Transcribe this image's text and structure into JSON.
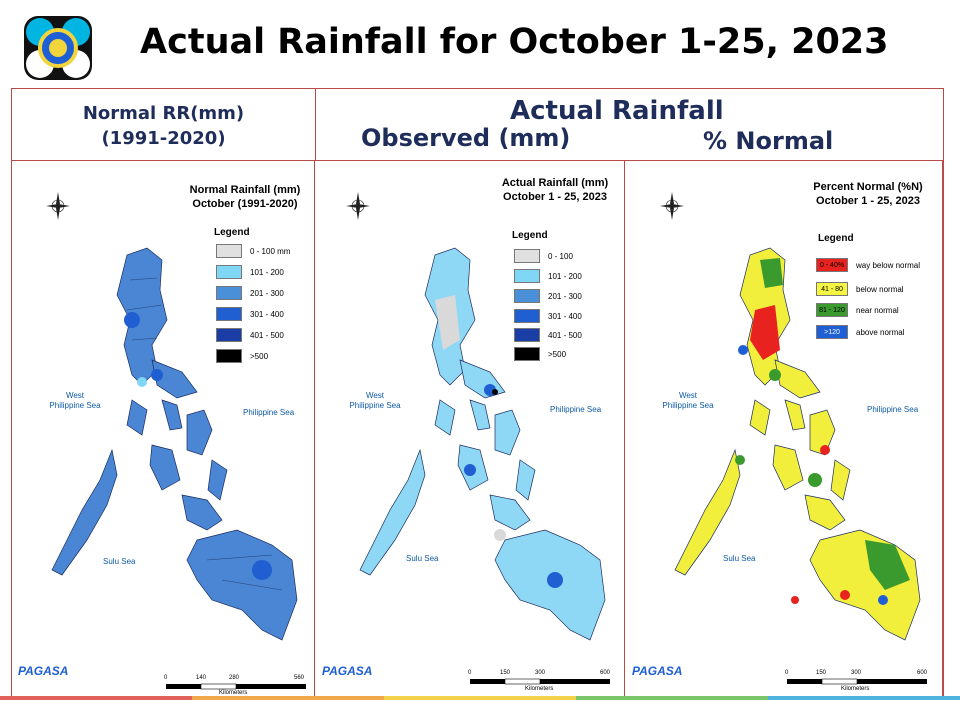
{
  "slide_title": "Actual Rainfall for October 1-25, 2023",
  "headers": {
    "normal_line1": "Normal RR(mm)",
    "normal_line2": "(1991-2020)",
    "actual": "Actual Rainfall",
    "observed": "Observed (mm)",
    "percent": "% Normal"
  },
  "panels": [
    {
      "title_line1": "Normal Rainfall (mm)",
      "title_line2": "October (1991-2020)",
      "legend_title": "Legend",
      "legend": [
        {
          "label": "0 - 100 mm",
          "color": "#e0e0e0"
        },
        {
          "label": "101 - 200",
          "color": "#7fd6f5"
        },
        {
          "label": "201 - 300",
          "color": "#4a90d9"
        },
        {
          "label": "301 - 400",
          "color": "#1f5fd1"
        },
        {
          "label": "401 - 500",
          "color": "#1b3ea6"
        },
        {
          "label": ">500",
          "color": "#000000"
        }
      ],
      "scale_ticks": [
        "0",
        "140",
        "280",
        "560"
      ],
      "map_fill": "#4a86d4"
    },
    {
      "title_line1": "Actual Rainfall (mm)",
      "title_line2": "October 1 - 25, 2023",
      "legend_title": "Legend",
      "legend": [
        {
          "label": "0 - 100",
          "color": "#e0e0e0"
        },
        {
          "label": "101 - 200",
          "color": "#7fd6f5"
        },
        {
          "label": "201 - 300",
          "color": "#4a90d9"
        },
        {
          "label": "301 - 400",
          "color": "#1f5fd1"
        },
        {
          "label": "401 - 500",
          "color": "#1b3ea6"
        },
        {
          "label": ">500",
          "color": "#000000"
        }
      ],
      "scale_ticks": [
        "0",
        "150",
        "300",
        "600"
      ],
      "map_fill": "#8fd8f5"
    },
    {
      "title_line1": "Percent Normal (%N)",
      "title_line2": "October 1 - 25, 2023",
      "legend_title": "Legend",
      "legend": [
        {
          "swatch": "0 - 40%",
          "label": "way below normal",
          "color": "#e8231f"
        },
        {
          "swatch": "41 - 80",
          "label": "below normal",
          "color": "#f5f542"
        },
        {
          "swatch": "81 - 120",
          "label": "near normal",
          "color": "#3a9a2e"
        },
        {
          "swatch": ">120",
          "label": "above normal",
          "color": "#1e5fd6"
        }
      ],
      "scale_ticks": [
        "0",
        "150",
        "300",
        "600"
      ],
      "map_fill": "#f2ee3c"
    }
  ],
  "sea_labels": {
    "west": "West\nPhilippine Sea",
    "east": "Philippine Sea",
    "sulu": "Sulu Sea"
  },
  "scale_unit": "Kilometers",
  "compass": {
    "n": "N",
    "s": "S",
    "e": "E",
    "w": "W"
  },
  "brand": "PAGASA",
  "bottom_bar_colors": [
    "#e0605a",
    "#f0a84a",
    "#f3d34a",
    "#7cc46a",
    "#4fb3e0"
  ]
}
